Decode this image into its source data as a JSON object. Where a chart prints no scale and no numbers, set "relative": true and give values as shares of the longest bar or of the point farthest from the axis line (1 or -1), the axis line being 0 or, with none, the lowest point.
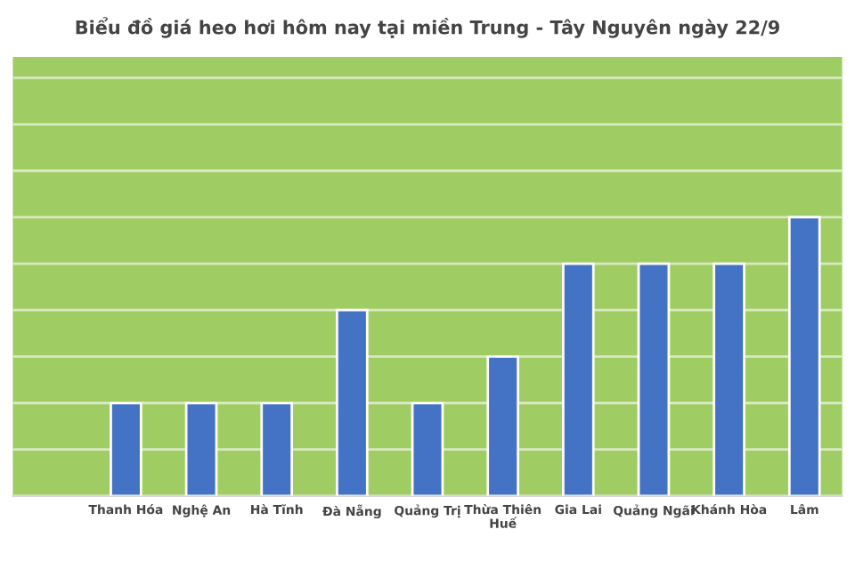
{
  "chart_data": {
    "type": "bar",
    "title": "Biểu đồ giá heo hơi hôm nay tại miền Trung - Tây Nguyên ngày 22/9",
    "categories": [
      null,
      "Thanh Hóa",
      "Nghệ An",
      "Hà Tĩnh",
      "Đà Nẵng",
      "Quảng Trị",
      "Thừa Thiên\nHuế",
      "Gia Lai",
      "Quảng Ngãi",
      "Khánh Hòa",
      "Lâm"
    ],
    "values": [
      null,
      0.333,
      0.333,
      0.333,
      0.667,
      0.333,
      0.5,
      0.833,
      0.833,
      0.833,
      1
    ],
    "color": "#4472c4",
    "relative": true,
    "grid": "y"
  }
}
